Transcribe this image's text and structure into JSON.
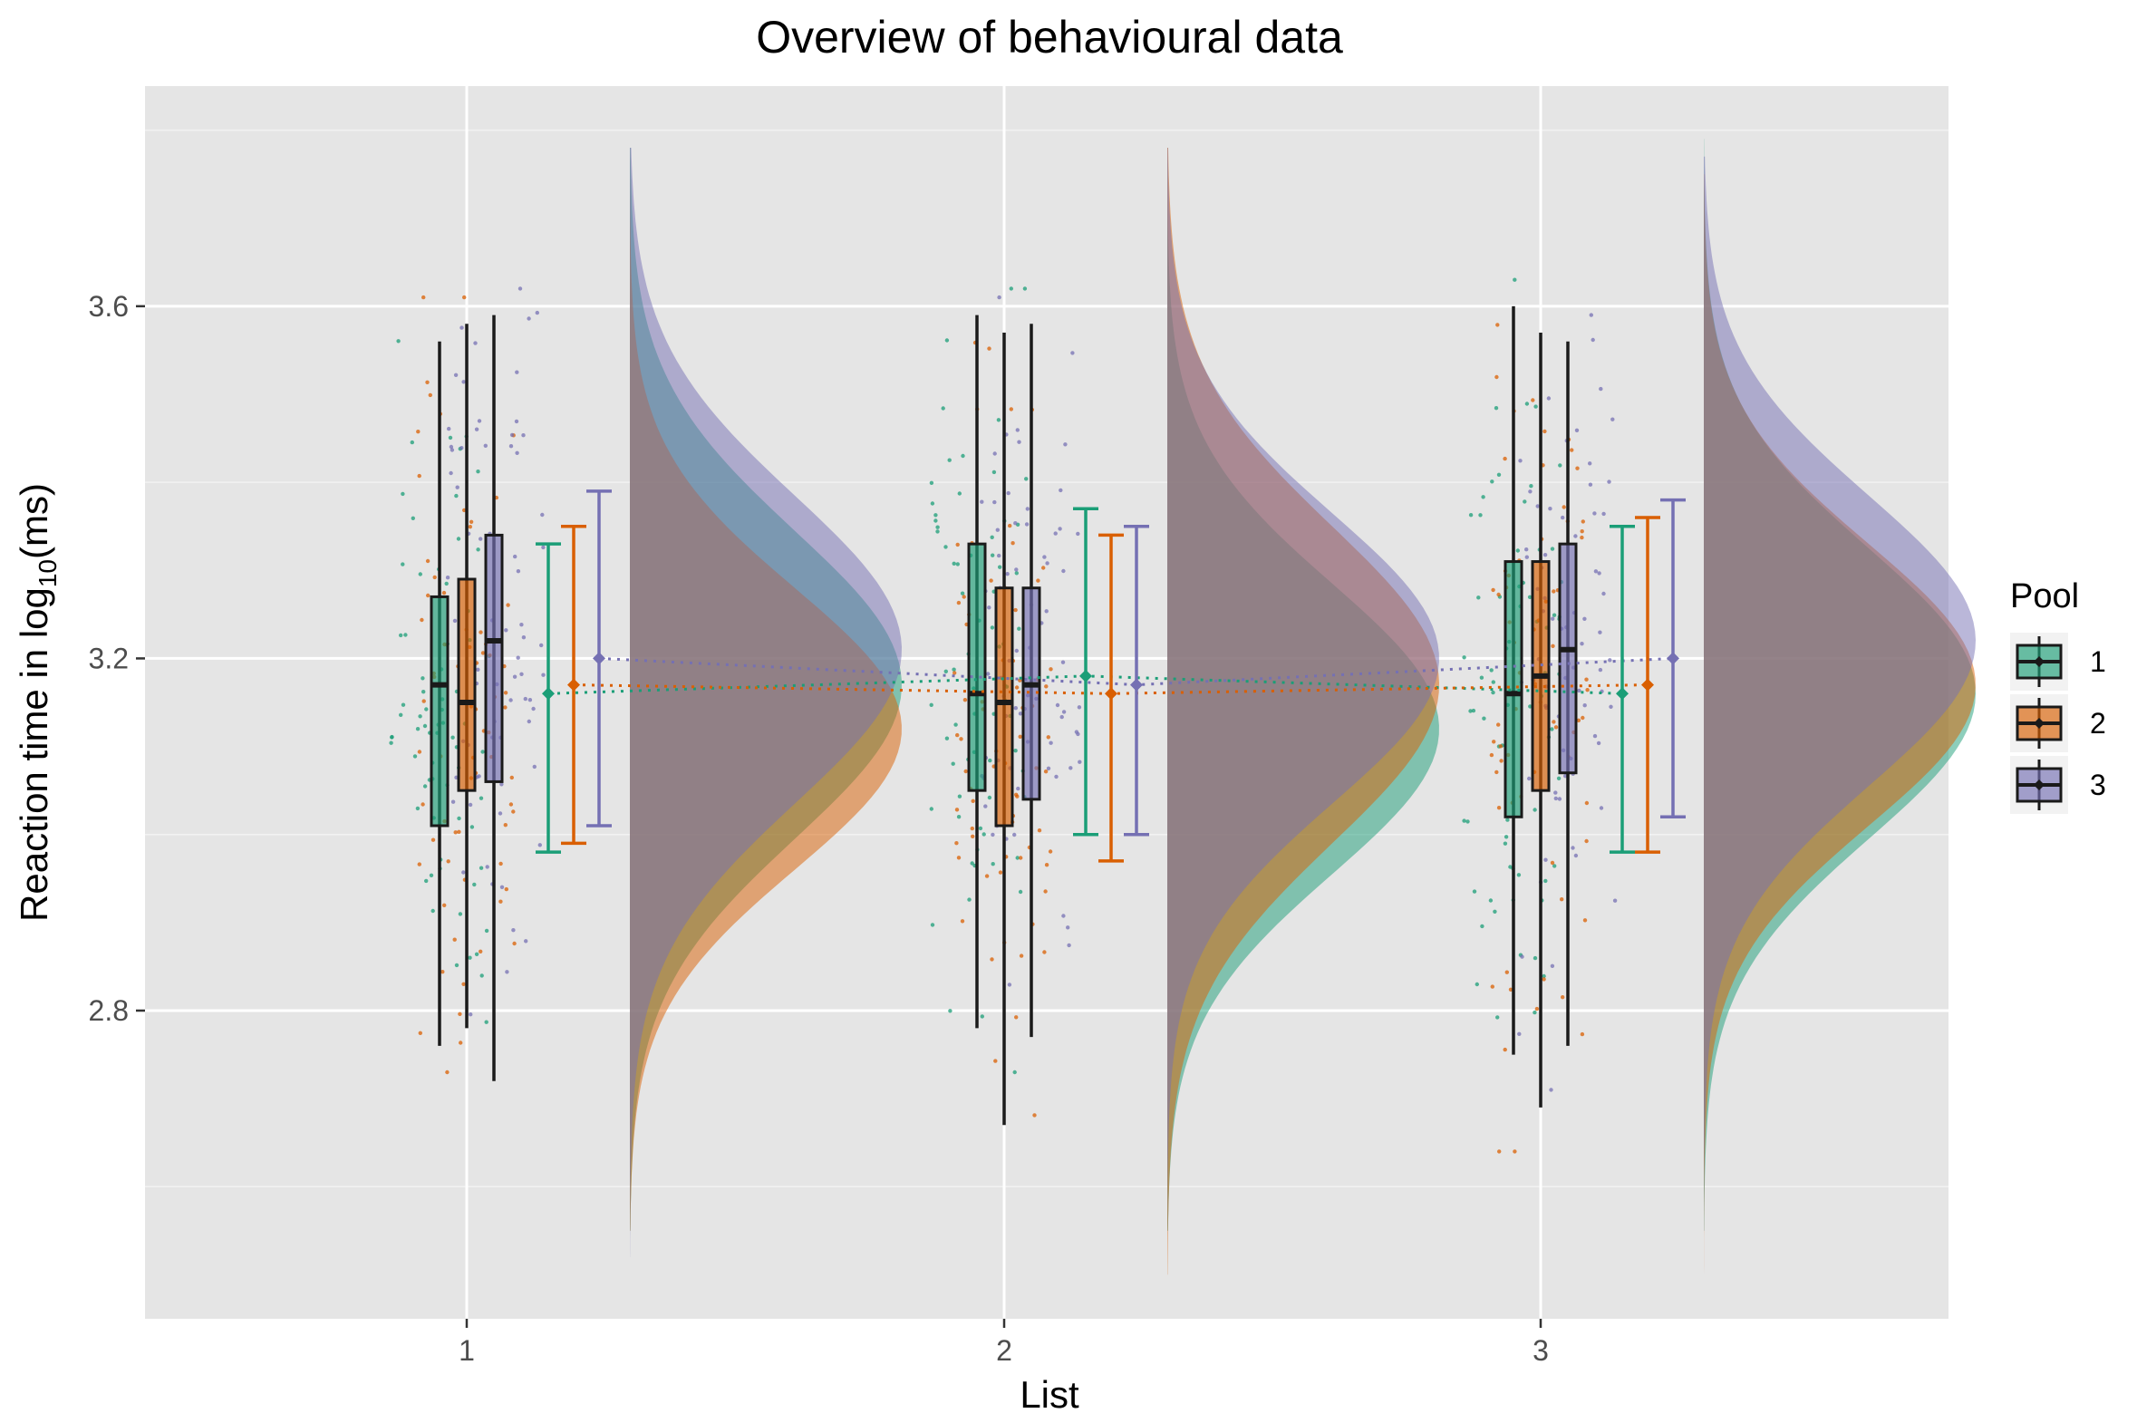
{
  "chart_data": {
    "type": "raincloud",
    "title": "Overview of behavioural data",
    "xlabel": "List",
    "ylabel_prefix": "Reaction time in log",
    "ylabel_sub": "10",
    "ylabel_suffix": "(ms)",
    "categories": [
      "1",
      "2",
      "3"
    ],
    "ylim": [
      2.45,
      3.85
    ],
    "yticks": [
      2.8,
      3.2,
      3.6
    ],
    "ytick_labels": [
      "2.8",
      "3.2",
      "3.6"
    ],
    "grid": true,
    "legend": {
      "title": "Pool",
      "placement": "right",
      "entries": [
        "1",
        "2",
        "3"
      ]
    },
    "colors": {
      "pool1": "#1b9e77",
      "pool2": "#d95f02",
      "pool3": "#7570b3",
      "panel": "#e5e5e5",
      "grid": "#ffffff"
    },
    "series": [
      {
        "name": "1",
        "box": [
          {
            "list": "1",
            "whisker_low": 2.76,
            "q1": 3.01,
            "median": 3.17,
            "q3": 3.27,
            "whisker_high": 3.56
          },
          {
            "list": "2",
            "whisker_low": 2.78,
            "q1": 3.05,
            "median": 3.16,
            "q3": 3.33,
            "whisker_high": 3.59
          },
          {
            "list": "3",
            "whisker_low": 2.75,
            "q1": 3.02,
            "median": 3.16,
            "q3": 3.31,
            "whisker_high": 3.6
          }
        ],
        "mean_ci": [
          {
            "list": "1",
            "mean": 3.16,
            "low": 2.98,
            "high": 3.33
          },
          {
            "list": "2",
            "mean": 3.18,
            "low": 3.0,
            "high": 3.37
          },
          {
            "list": "3",
            "mean": 3.16,
            "low": 2.98,
            "high": 3.35
          }
        ],
        "density": [
          {
            "list": "1",
            "mean": 3.17,
            "sd": 0.175,
            "min": 2.55,
            "max": 3.78
          },
          {
            "list": "2",
            "mean": 3.12,
            "sd": 0.165,
            "min": 2.55,
            "max": 3.78
          },
          {
            "list": "3",
            "mean": 3.16,
            "sd": 0.165,
            "min": 2.55,
            "max": 3.79
          }
        ]
      },
      {
        "name": "2",
        "box": [
          {
            "list": "1",
            "whisker_low": 2.78,
            "q1": 3.05,
            "median": 3.15,
            "q3": 3.29,
            "whisker_high": 3.58
          },
          {
            "list": "2",
            "whisker_low": 2.67,
            "q1": 3.01,
            "median": 3.15,
            "q3": 3.28,
            "whisker_high": 3.57
          },
          {
            "list": "3",
            "whisker_low": 2.69,
            "q1": 3.05,
            "median": 3.18,
            "q3": 3.31,
            "whisker_high": 3.57
          }
        ],
        "mean_ci": [
          {
            "list": "1",
            "mean": 3.17,
            "low": 2.99,
            "high": 3.35
          },
          {
            "list": "2",
            "mean": 3.16,
            "low": 2.97,
            "high": 3.34
          },
          {
            "list": "3",
            "mean": 3.17,
            "low": 2.98,
            "high": 3.36
          }
        ],
        "density": [
          {
            "list": "1",
            "mean": 3.12,
            "sd": 0.16,
            "min": 2.55,
            "max": 3.78
          },
          {
            "list": "2",
            "mean": 3.17,
            "sd": 0.18,
            "min": 2.5,
            "max": 3.78
          },
          {
            "list": "3",
            "mean": 3.17,
            "sd": 0.16,
            "min": 2.5,
            "max": 3.75
          }
        ]
      },
      {
        "name": "3",
        "box": [
          {
            "list": "1",
            "whisker_low": 2.72,
            "q1": 3.06,
            "median": 3.22,
            "q3": 3.34,
            "whisker_high": 3.59
          },
          {
            "list": "2",
            "whisker_low": 2.77,
            "q1": 3.04,
            "median": 3.17,
            "q3": 3.28,
            "whisker_high": 3.58
          },
          {
            "list": "3",
            "whisker_low": 2.76,
            "q1": 3.07,
            "median": 3.21,
            "q3": 3.33,
            "whisker_high": 3.56
          }
        ],
        "mean_ci": [
          {
            "list": "1",
            "mean": 3.2,
            "low": 3.01,
            "high": 3.39
          },
          {
            "list": "2",
            "mean": 3.17,
            "low": 3.0,
            "high": 3.35
          },
          {
            "list": "3",
            "mean": 3.2,
            "low": 3.02,
            "high": 3.38
          }
        ],
        "density": [
          {
            "list": "1",
            "mean": 3.21,
            "sd": 0.175,
            "min": 2.52,
            "max": 3.78
          },
          {
            "list": "2",
            "mean": 3.2,
            "sd": 0.165,
            "min": 2.55,
            "max": 3.78
          },
          {
            "list": "3",
            "mean": 3.22,
            "sd": 0.165,
            "min": 2.55,
            "max": 3.77
          }
        ]
      }
    ]
  }
}
